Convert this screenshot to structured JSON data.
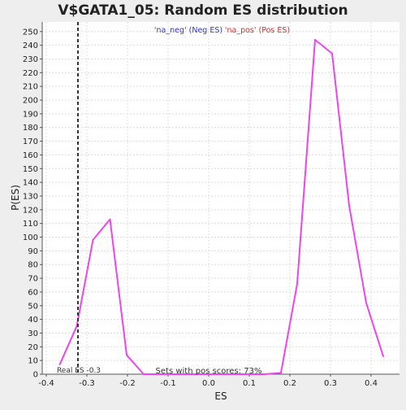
{
  "chart_data": {
    "type": "line",
    "title": "V$GATA1_05: Random ES distribution",
    "xlabel": "ES",
    "ylabel": "P(ES)",
    "xlim": [
      -0.41,
      0.47
    ],
    "ylim": [
      0,
      257
    ],
    "xticks": [
      -0.4,
      -0.3,
      -0.2,
      -0.1,
      0.0,
      0.1,
      0.2,
      0.3,
      0.4
    ],
    "xtick_labels": [
      "-0.4",
      "-0.3",
      "-0.2",
      "-0.1",
      "0.0",
      "0.1",
      "0.2",
      "0.3",
      "0.4"
    ],
    "yticks": [
      0,
      10,
      20,
      30,
      40,
      50,
      60,
      70,
      80,
      90,
      100,
      110,
      120,
      130,
      140,
      150,
      160,
      170,
      180,
      190,
      200,
      210,
      220,
      230,
      240,
      250
    ],
    "grid": true,
    "legend": [
      {
        "label": "'na_neg' (Neg ES)",
        "color": "#3333cc"
      },
      {
        "label": "'na_pos' (Pos ES)",
        "color": "#cc3333"
      }
    ],
    "series": [
      {
        "color": "#ee44ee",
        "x": [
          -0.367,
          -0.325,
          -0.285,
          -0.243,
          -0.202,
          -0.16,
          -0.12,
          -0.08,
          -0.04,
          0.0,
          0.04,
          0.08,
          0.12,
          0.138,
          0.178,
          0.218,
          0.262,
          0.304,
          0.346,
          0.388,
          0.43
        ],
        "y": [
          7,
          35,
          98,
          113,
          14,
          0,
          0,
          0,
          0,
          0,
          0,
          0,
          0,
          0,
          1,
          66,
          244,
          234,
          123,
          52,
          13
        ]
      }
    ],
    "real_es": {
      "x": -0.322,
      "label": "Real ES -0.3"
    },
    "annotation": "Sets with pos scores: 73%"
  }
}
